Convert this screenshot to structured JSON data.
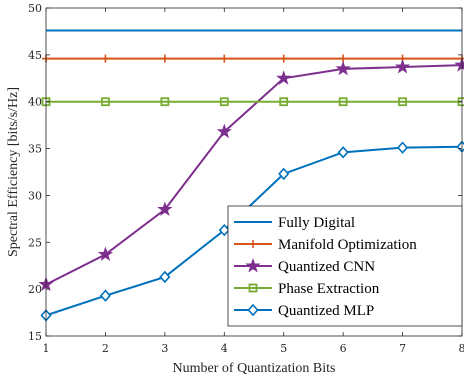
{
  "chart_data": {
    "type": "line",
    "title": "",
    "xlabel": "Number of Quantization Bits",
    "ylabel": "Spectral Efficiency [bits/s/Hz]",
    "xlim": [
      1,
      8
    ],
    "ylim": [
      15,
      50
    ],
    "xticks": [
      1,
      2,
      3,
      4,
      5,
      6,
      7,
      8
    ],
    "yticks": [
      15,
      20,
      25,
      30,
      35,
      40,
      45,
      50
    ],
    "grid": false,
    "legend_position": "bottom-right",
    "x": [
      1,
      2,
      3,
      4,
      5,
      6,
      7,
      8
    ],
    "series": [
      {
        "name": "Fully Digital",
        "color": "#0072BD",
        "marker": "none",
        "values": [
          47.6,
          47.6,
          47.6,
          47.6,
          47.6,
          47.6,
          47.6,
          47.6
        ]
      },
      {
        "name": "Manifold Optimization",
        "color": "#D95319",
        "marker": "plus",
        "values": [
          44.6,
          44.6,
          44.6,
          44.6,
          44.6,
          44.6,
          44.6,
          44.6
        ]
      },
      {
        "name": "Quantized CNN",
        "color": "#7E2F8E",
        "marker": "pentagram",
        "values": [
          20.5,
          23.7,
          28.5,
          36.8,
          42.5,
          43.5,
          43.7,
          43.9
        ]
      },
      {
        "name": "Phase Extraction",
        "color": "#77AC30",
        "marker": "square",
        "values": [
          40.0,
          40.0,
          40.0,
          40.0,
          40.0,
          40.0,
          40.0,
          40.0
        ]
      },
      {
        "name": "Quantized MLP",
        "color": "#0072BD",
        "marker": "diamond",
        "values": [
          17.2,
          19.3,
          21.3,
          26.3,
          32.3,
          34.6,
          35.1,
          35.2
        ]
      }
    ]
  }
}
